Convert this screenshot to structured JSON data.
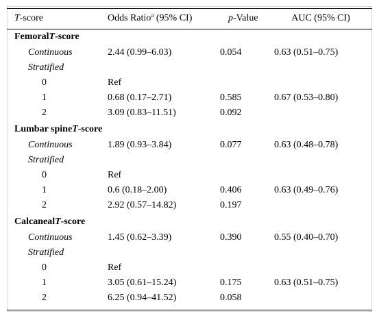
{
  "header": {
    "col1_ital": "T",
    "col1_rest": "-score",
    "col2_main": "Odds Ratio",
    "col2_sup": "a",
    "col2_rest": " (95% CI)",
    "col3_ital": "p",
    "col3_rest": "-Value",
    "col4": "AUC (95% CI)"
  },
  "sections": [
    {
      "title": "Femoral",
      "title_ital": "T",
      "title_rest": "-score",
      "continuous": {
        "label": "Continuous",
        "or": "2.44 (0.99–6.03)",
        "p": "0.054",
        "auc": "0.63 (0.51–0.75)"
      },
      "stratified_label": "Stratified",
      "levels": [
        {
          "level": "0",
          "or": "Ref",
          "p": "",
          "auc": ""
        },
        {
          "level": "1",
          "or": "0.68 (0.17–2.71)",
          "p": "0.585",
          "auc": "0.67 (0.53–0.80)"
        },
        {
          "level": "2",
          "or": "3.09 (0.83–11.51)",
          "p": "0.092",
          "auc": ""
        }
      ]
    },
    {
      "title": "Lumbar spine",
      "title_ital": "T",
      "title_rest": "-score",
      "continuous": {
        "label": "Continuous",
        "or": "1.89 (0.93–3.84)",
        "p": "0.077",
        "auc": "0.63 (0.48–0.78)"
      },
      "stratified_label": "Stratified",
      "levels": [
        {
          "level": "0",
          "or": "Ref",
          "p": "",
          "auc": ""
        },
        {
          "level": "1",
          "or": "0.6 (0.18–2.00)",
          "p": "0.406",
          "auc": "0.63 (0.49–0.76)"
        },
        {
          "level": "2",
          "or": "2.92 (0.57–14.82)",
          "p": "0.197",
          "auc": ""
        }
      ]
    },
    {
      "title": "Calcaneal",
      "title_ital": "T",
      "title_rest": "-score",
      "continuous": {
        "label": "Continuous",
        "or": "1.45 (0.62–3.39)",
        "p": "0.390",
        "auc": "0.55 (0.40–0.70)"
      },
      "stratified_label": "Stratified",
      "levels": [
        {
          "level": "0",
          "or": "Ref",
          "p": "",
          "auc": ""
        },
        {
          "level": "1",
          "or": "3.05 (0.61–15.24)",
          "p": "0.175",
          "auc": "0.63 (0.51–0.75)"
        },
        {
          "level": "2",
          "or": "6.25 (0.94–41.52)",
          "p": "0.058",
          "auc": ""
        }
      ]
    }
  ]
}
